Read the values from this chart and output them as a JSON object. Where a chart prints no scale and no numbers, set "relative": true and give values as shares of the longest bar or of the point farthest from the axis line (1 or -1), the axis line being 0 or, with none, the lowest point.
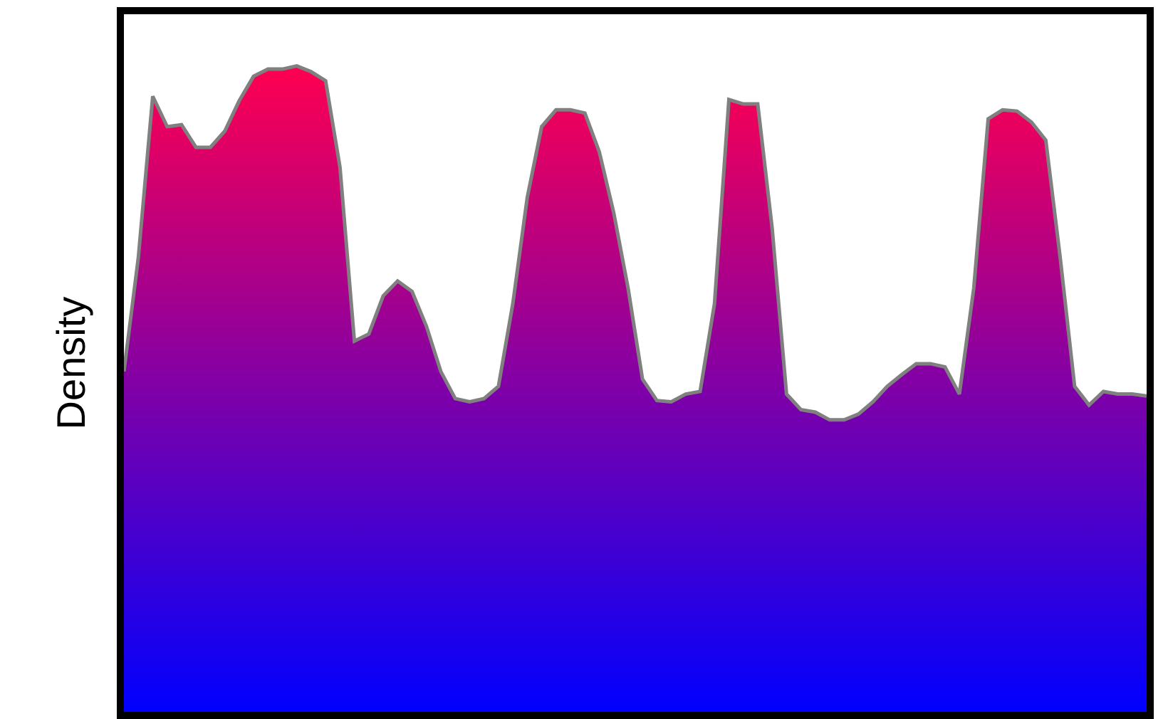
{
  "chart_data": {
    "type": "area",
    "relative": true,
    "ylabel": "Density",
    "categories": [
      null,
      null,
      null,
      null,
      null,
      null,
      null,
      null,
      null,
      null,
      null,
      null,
      null,
      null,
      null,
      null,
      null,
      null,
      null,
      null,
      null,
      null,
      null,
      null,
      null,
      null,
      null,
      null,
      null,
      null,
      null,
      null,
      null,
      null,
      null,
      null,
      null,
      null,
      null,
      null,
      null,
      null,
      null,
      null,
      null,
      null,
      null,
      null,
      null,
      null,
      null,
      null,
      null,
      null,
      null,
      null,
      null,
      null,
      null,
      null,
      null,
      null,
      null,
      null,
      null,
      null,
      null,
      null,
      null,
      null,
      null,
      null
    ],
    "series": [
      {
        "color": "#808080",
        "values": [
          0.527,
          0.703,
          0.953,
          0.906,
          0.909,
          0.874,
          0.874,
          0.899,
          0.946,
          0.984,
          0.995,
          0.995,
          1,
          0.991,
          0.977,
          0.843,
          0.574,
          0.585,
          0.644,
          0.667,
          0.651,
          0.597,
          0.527,
          0.485,
          0.48,
          0.485,
          0.504,
          0.632,
          0.796,
          0.906,
          0.932,
          0.932,
          0.927,
          0.867,
          0.773,
          0.656,
          0.515,
          0.482,
          0.48,
          0.492,
          0.496,
          0.632,
          0.948,
          0.941,
          0.941,
          0.749,
          0.492,
          0.468,
          0.464,
          0.452,
          0.452,
          0.461,
          0.48,
          0.504,
          0.522,
          0.539,
          0.539,
          0.534,
          0.492,
          0.656,
          0.918,
          0.932,
          0.93,
          0.913,
          0.885,
          0.703,
          0.504,
          0.475,
          0.496,
          0.492,
          0.492,
          0.489
        ]
      }
    ]
  }
}
